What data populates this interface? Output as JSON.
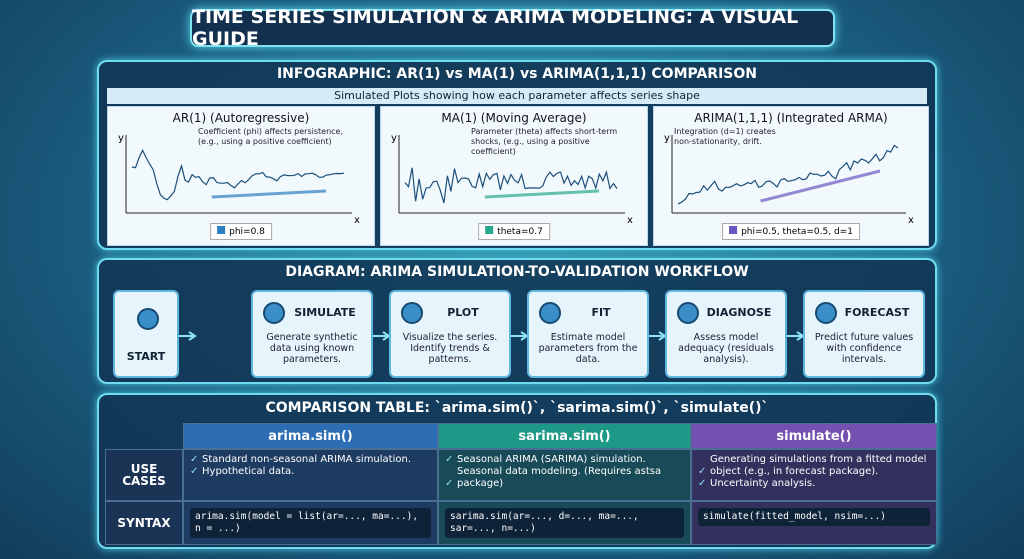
{
  "title": "TIME SERIES SIMULATION & ARIMA MODELING: A VISUAL GUIDE",
  "infographic": {
    "heading": "INFOGRAPHIC: AR(1) vs MA(1) vs ARIMA(1,1,1) COMPARISON",
    "subtitle": "Simulated Plots showing how each parameter affects series shape",
    "panels": [
      {
        "title": "AR(1) (Autoregressive)",
        "note": "Coefficient (phi) affects persistence, (e.g., using a positive coefficient)",
        "legend": "phi=0.8",
        "y_label": "y",
        "x_label": "x"
      },
      {
        "title": "MA(1) (Moving Average)",
        "note": "Parameter (theta) affects short-term shocks, (e.g., using a positive coefficient)",
        "legend": "theta=0.7",
        "y_label": "y",
        "x_label": "x"
      },
      {
        "title": "ARIMA(1,1,1) (Integrated ARMA)",
        "note": "Integration (d=1) creates non-stationarity, drift.",
        "legend": "phi=0.5, theta=0.5, d=1",
        "y_label": "y",
        "x_label": "x"
      }
    ]
  },
  "workflow": {
    "heading": "DIAGRAM: ARIMA SIMULATION-TO-VALIDATION WORKFLOW",
    "steps": [
      {
        "label": "START",
        "desc": ""
      },
      {
        "label": "SIMULATE",
        "desc": "Generate synthetic data using known parameters."
      },
      {
        "label": "PLOT",
        "desc": "Visualize the series. Identify trends & patterns."
      },
      {
        "label": "FIT",
        "desc": "Estimate model parameters from the data."
      },
      {
        "label": "DIAGNOSE",
        "desc": "Assess model adequacy (residuals analysis)."
      },
      {
        "label": "FORECAST",
        "desc": "Predict future values with confidence intervals."
      }
    ]
  },
  "table": {
    "heading": "COMPARISON TABLE: `arima.sim()`, `sarima.sim()`, `simulate()`",
    "columns": [
      "arima.sim()",
      "sarima.sim()",
      "simulate()"
    ],
    "rows": [
      {
        "label": "USE CASES",
        "cells": [
          [
            "Standard non-seasonal ARIMA simulation.",
            "Hypothetical data."
          ],
          [
            "Seasonal ARIMA (SARIMA) simulation.",
            "Seasonal data modeling. (Requires astsa package)"
          ],
          [
            "Generating simulations from a fitted model object (e.g., in forecast package).",
            "Uncertainty analysis."
          ]
        ]
      },
      {
        "label": "SYNTAX",
        "cells": [
          [
            "arima.sim(model = list(ar=..., ma=...), n = ...)"
          ],
          [
            "sarima.sim(ar=..., d=..., ma=..., sar=..., n=...)"
          ],
          [
            "simulate(fitted_model, nsim=...)"
          ]
        ]
      }
    ]
  }
}
